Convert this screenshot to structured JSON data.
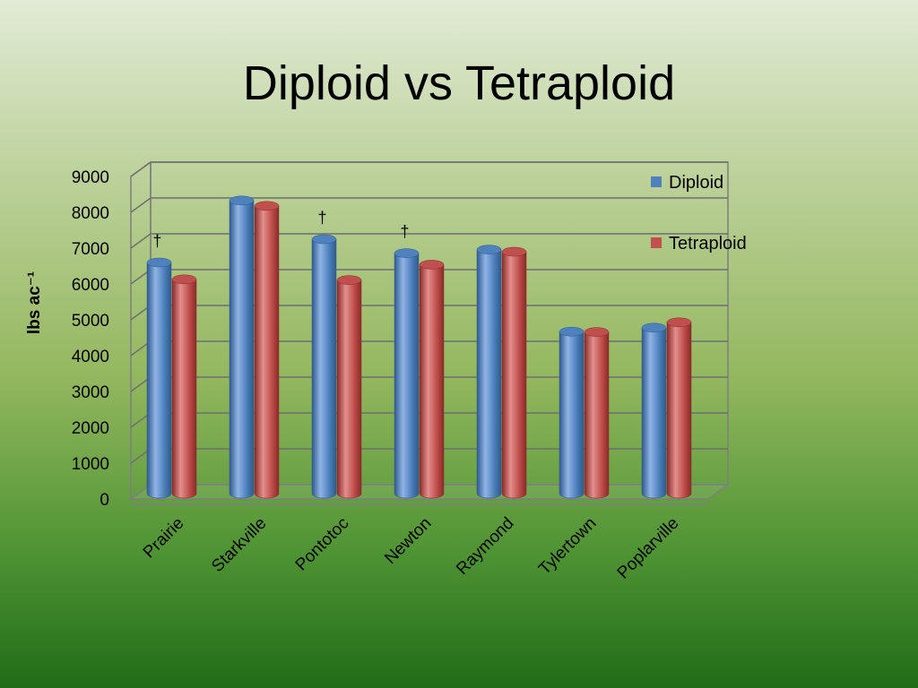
{
  "slide": {
    "title": "Diploid vs Tetraploid"
  },
  "chart_data": {
    "type": "bar",
    "title": "",
    "xlabel": "",
    "ylabel": "lbs ac⁻¹",
    "ylim": [
      0,
      9000
    ],
    "yticks": [
      "0",
      "1000",
      "2000",
      "3000",
      "4000",
      "5000",
      "6000",
      "7000",
      "8000",
      "9000"
    ],
    "categories": [
      "Prairie",
      "Starkville",
      "Pontotoc",
      "Newton",
      "Raymond",
      "Tylertown",
      "Poplarville"
    ],
    "series": [
      {
        "name": "Diploid",
        "color": "#4f81bd",
        "values": [
          6500,
          8230,
          7150,
          6760,
          6860,
          4570,
          4680
        ]
      },
      {
        "name": "Tetraploid",
        "color": "#c0504d",
        "values": [
          6030,
          8080,
          6010,
          6440,
          6800,
          4560,
          4830
        ]
      }
    ],
    "annotations": [
      {
        "text": "†",
        "category": "Prairie"
      },
      {
        "text": "†",
        "category": "Pontotoc"
      },
      {
        "text": "†",
        "category": "Newton"
      }
    ],
    "legend": "right",
    "grid": true
  }
}
